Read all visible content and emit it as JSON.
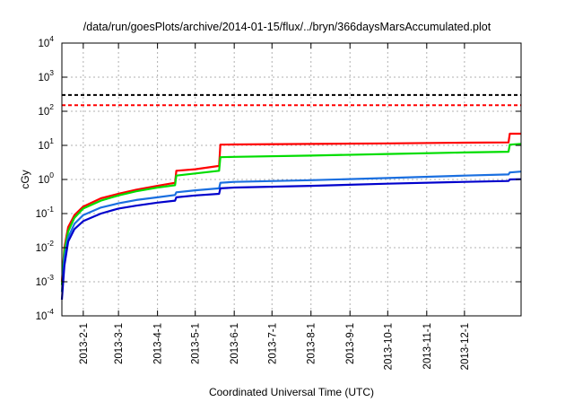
{
  "chart_data": {
    "type": "line",
    "title": "/data/run/goesPlots/archive/2014-01-15/flux/../bryn/366daysMarsAccumulated.plot",
    "xlabel": "Coordinated Universal Time (UTC)",
    "ylabel": "cGy",
    "xlim": [
      "2013-01-15",
      "2014-01-15"
    ],
    "ylim": [
      0.0001,
      10000
    ],
    "yscale": "log",
    "grid": true,
    "legend": "none",
    "x_tick_labels": [
      "2013-2-1",
      "2013-3-1",
      "2013-4-1",
      "2013-5-1",
      "2013-6-1",
      "2013-7-1",
      "2013-8-1",
      "2013-9-1",
      "2013-10-1",
      "2013-11-1",
      "2013-12-1"
    ],
    "x_tick_dates": [
      "2013-02-01",
      "2013-03-01",
      "2013-04-01",
      "2013-05-01",
      "2013-06-01",
      "2013-07-01",
      "2013-08-01",
      "2013-09-01",
      "2013-10-01",
      "2013-11-01",
      "2013-12-01"
    ],
    "y_tick_labels": [
      {
        "base": "10",
        "exp": "-4",
        "value": 0.0001
      },
      {
        "base": "10",
        "exp": "-3",
        "value": 0.001
      },
      {
        "base": "10",
        "exp": "-2",
        "value": 0.01
      },
      {
        "base": "10",
        "exp": "-1",
        "value": 0.1
      },
      {
        "base": "10",
        "exp": "0",
        "value": 1
      },
      {
        "base": "10",
        "exp": "1",
        "value": 10
      },
      {
        "base": "10",
        "exp": "2",
        "value": 100
      },
      {
        "base": "10",
        "exp": "3",
        "value": 1000
      },
      {
        "base": "10",
        "exp": "4",
        "value": 10000
      }
    ],
    "reference_lines": [
      {
        "value": 300,
        "color": "#000000",
        "style": "dashed"
      },
      {
        "value": 150,
        "color": "#ff0000",
        "style": "dashed"
      }
    ],
    "series": [
      {
        "color": "#ff0000",
        "x": [
          "2013-01-15",
          "2013-01-17",
          "2013-01-20",
          "2013-01-25",
          "2013-02-01",
          "2013-02-15",
          "2013-03-01",
          "2013-03-15",
          "2013-04-01",
          "2013-04-15",
          "2013-04-16",
          "2013-05-01",
          "2013-05-20",
          "2013-05-21",
          "2013-06-01",
          "2013-08-01",
          "2013-10-01",
          "2013-12-01",
          "2014-01-05",
          "2014-01-06",
          "2014-01-15"
        ],
        "y": [
          0.001,
          0.01,
          0.04,
          0.09,
          0.16,
          0.28,
          0.38,
          0.5,
          0.65,
          0.8,
          1.8,
          2.0,
          2.5,
          10.5,
          10.6,
          11,
          11.4,
          12,
          12.2,
          22,
          22
        ]
      },
      {
        "color": "#00dd00",
        "x": [
          "2013-01-15",
          "2013-01-17",
          "2013-01-20",
          "2013-01-25",
          "2013-02-01",
          "2013-02-15",
          "2013-03-01",
          "2013-03-15",
          "2013-04-01",
          "2013-04-15",
          "2013-04-16",
          "2013-05-01",
          "2013-05-20",
          "2013-05-21",
          "2013-06-01",
          "2013-08-01",
          "2013-10-01",
          "2013-12-01",
          "2014-01-05",
          "2014-01-06",
          "2014-01-15"
        ],
        "y": [
          0.0008,
          0.008,
          0.03,
          0.075,
          0.14,
          0.24,
          0.34,
          0.45,
          0.58,
          0.68,
          1.3,
          1.5,
          1.8,
          4.5,
          4.6,
          5.0,
          5.6,
          6.2,
          6.5,
          10.5,
          11
        ]
      },
      {
        "color": "#1a6fe0",
        "x": [
          "2013-01-15",
          "2013-01-17",
          "2013-01-20",
          "2013-01-25",
          "2013-02-01",
          "2013-02-15",
          "2013-03-01",
          "2013-03-15",
          "2013-04-01",
          "2013-04-15",
          "2013-04-16",
          "2013-05-01",
          "2013-05-20",
          "2013-05-21",
          "2013-06-01",
          "2013-08-01",
          "2013-10-01",
          "2013-12-01",
          "2014-01-05",
          "2014-01-06",
          "2014-01-15"
        ],
        "y": [
          0.0005,
          0.005,
          0.02,
          0.05,
          0.09,
          0.15,
          0.2,
          0.25,
          0.3,
          0.35,
          0.42,
          0.48,
          0.55,
          0.8,
          0.85,
          0.95,
          1.1,
          1.3,
          1.4,
          1.6,
          1.7
        ]
      },
      {
        "color": "#0000cc",
        "x": [
          "2013-01-15",
          "2013-01-17",
          "2013-01-20",
          "2013-01-25",
          "2013-02-01",
          "2013-02-15",
          "2013-03-01",
          "2013-03-15",
          "2013-04-01",
          "2013-04-15",
          "2013-04-16",
          "2013-05-01",
          "2013-05-20",
          "2013-05-21",
          "2013-06-01",
          "2013-08-01",
          "2013-10-01",
          "2013-12-01",
          "2014-01-05",
          "2014-01-06",
          "2014-01-15"
        ],
        "y": [
          0.0003,
          0.003,
          0.015,
          0.035,
          0.06,
          0.1,
          0.14,
          0.17,
          0.21,
          0.24,
          0.3,
          0.34,
          0.38,
          0.55,
          0.58,
          0.65,
          0.75,
          0.85,
          0.9,
          1.0,
          1.02
        ]
      }
    ]
  }
}
